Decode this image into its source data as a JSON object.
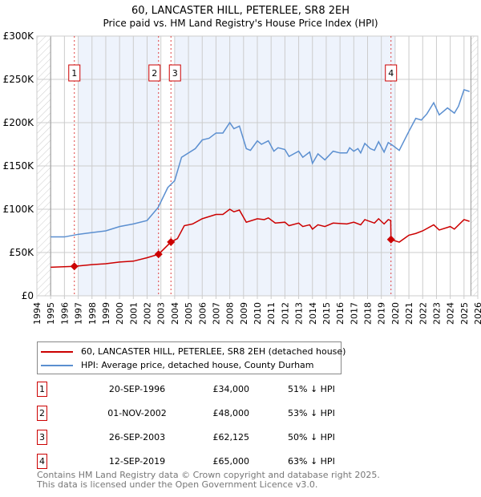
{
  "chart_data": {
    "type": "line",
    "title": "60, LANCASTER HILL, PETERLEE, SR8 2EH",
    "subtitle": "Price paid vs. HM Land Registry's House Price Index (HPI)",
    "xlim": [
      1994,
      2026
    ],
    "ylim": [
      0,
      300000
    ],
    "y_ticks": [
      {
        "v": 0,
        "label": "£0"
      },
      {
        "v": 50000,
        "label": "£50K"
      },
      {
        "v": 100000,
        "label": "£100K"
      },
      {
        "v": 150000,
        "label": "£150K"
      },
      {
        "v": 200000,
        "label": "£200K"
      },
      {
        "v": 250000,
        "label": "£250K"
      },
      {
        "v": 300000,
        "label": "£300K"
      }
    ],
    "x_ticks": [
      "1994",
      "1995",
      "1996",
      "1997",
      "1998",
      "1999",
      "2000",
      "2001",
      "2002",
      "2003",
      "2004",
      "2005",
      "2006",
      "2007",
      "2008",
      "2009",
      "2010",
      "2011",
      "2012",
      "2013",
      "2014",
      "2015",
      "2016",
      "2017",
      "2018",
      "2019",
      "2020",
      "2021",
      "2022",
      "2023",
      "2024",
      "2025",
      "2026"
    ],
    "grid": true,
    "colors": {
      "property": "#cc0000",
      "hpi": "#5b8fd0",
      "shade": "#eef3fc"
    },
    "shaded": [
      [
        1997.0,
        2002.9
      ],
      [
        2004.0,
        2020.0
      ]
    ],
    "hatched": [
      [
        1994,
        1995
      ],
      [
        2025.5,
        2026
      ]
    ],
    "series": [
      {
        "name": "60, LANCASTER HILL, PETERLEE, SR8 2EH (detached house)",
        "color": "#cc0000",
        "points": [
          [
            1995,
            33000
          ],
          [
            1996.72,
            34000
          ],
          [
            1998,
            36000
          ],
          [
            1999,
            37000
          ],
          [
            2000,
            39000
          ],
          [
            2001,
            40000
          ],
          [
            2002,
            44000
          ],
          [
            2002.83,
            48000
          ],
          [
            2003.73,
            62125
          ],
          [
            2004.2,
            66000
          ],
          [
            2004.7,
            81000
          ],
          [
            2005.3,
            83000
          ],
          [
            2006,
            89000
          ],
          [
            2007,
            94000
          ],
          [
            2007.5,
            94000
          ],
          [
            2008,
            100000
          ],
          [
            2008.3,
            97000
          ],
          [
            2008.7,
            99000
          ],
          [
            2009.2,
            85000
          ],
          [
            2010,
            89000
          ],
          [
            2010.5,
            88000
          ],
          [
            2010.8,
            90000
          ],
          [
            2011.3,
            84000
          ],
          [
            2012,
            85000
          ],
          [
            2012.3,
            81000
          ],
          [
            2013,
            84000
          ],
          [
            2013.3,
            80000
          ],
          [
            2013.8,
            82000
          ],
          [
            2014,
            77000
          ],
          [
            2014.4,
            82000
          ],
          [
            2014.9,
            80000
          ],
          [
            2015.5,
            84000
          ],
          [
            2016.5,
            83000
          ],
          [
            2017,
            85000
          ],
          [
            2017.5,
            82000
          ],
          [
            2017.8,
            88000
          ],
          [
            2018.5,
            84000
          ],
          [
            2018.8,
            89000
          ],
          [
            2019.2,
            83000
          ],
          [
            2019.5,
            88000
          ],
          [
            2019.68,
            87000
          ],
          [
            2019.7,
            65000
          ],
          [
            2020.3,
            62000
          ],
          [
            2021,
            70000
          ],
          [
            2021.5,
            72000
          ],
          [
            2022,
            75000
          ],
          [
            2022.8,
            82000
          ],
          [
            2023.2,
            76000
          ],
          [
            2024,
            80000
          ],
          [
            2024.3,
            77000
          ],
          [
            2025,
            88000
          ],
          [
            2025.4,
            86000
          ]
        ]
      },
      {
        "name": "HPI: Average price, detached house, County Durham",
        "color": "#5b8fd0",
        "points": [
          [
            1995,
            68000
          ],
          [
            1996,
            68000
          ],
          [
            1997,
            71000
          ],
          [
            1998,
            73000
          ],
          [
            1999,
            75000
          ],
          [
            2000,
            80000
          ],
          [
            2001,
            83000
          ],
          [
            2002,
            87000
          ],
          [
            2002.8,
            102000
          ],
          [
            2003.5,
            125000
          ],
          [
            2004,
            133000
          ],
          [
            2004.5,
            160000
          ],
          [
            2005.5,
            170000
          ],
          [
            2006,
            180000
          ],
          [
            2006.5,
            182000
          ],
          [
            2007,
            188000
          ],
          [
            2007.5,
            188000
          ],
          [
            2008,
            200000
          ],
          [
            2008.3,
            193000
          ],
          [
            2008.7,
            196000
          ],
          [
            2009.2,
            170000
          ],
          [
            2009.5,
            168000
          ],
          [
            2010,
            179000
          ],
          [
            2010.3,
            175000
          ],
          [
            2010.8,
            179000
          ],
          [
            2011.2,
            167000
          ],
          [
            2011.5,
            171000
          ],
          [
            2012,
            169000
          ],
          [
            2012.3,
            161000
          ],
          [
            2013,
            167000
          ],
          [
            2013.3,
            160000
          ],
          [
            2013.8,
            166000
          ],
          [
            2014,
            153000
          ],
          [
            2014.4,
            164000
          ],
          [
            2014.9,
            157000
          ],
          [
            2015.5,
            167000
          ],
          [
            2016,
            165000
          ],
          [
            2016.5,
            165000
          ],
          [
            2016.7,
            171000
          ],
          [
            2017,
            167000
          ],
          [
            2017.3,
            170000
          ],
          [
            2017.5,
            165000
          ],
          [
            2017.8,
            176000
          ],
          [
            2018.2,
            170000
          ],
          [
            2018.5,
            168000
          ],
          [
            2018.8,
            178000
          ],
          [
            2019.2,
            166000
          ],
          [
            2019.5,
            177000
          ],
          [
            2019.8,
            174000
          ],
          [
            2020.3,
            168000
          ],
          [
            2021,
            190000
          ],
          [
            2021.5,
            205000
          ],
          [
            2021.9,
            203000
          ],
          [
            2022.3,
            210000
          ],
          [
            2022.8,
            223000
          ],
          [
            2023.2,
            209000
          ],
          [
            2023.8,
            217000
          ],
          [
            2024.3,
            211000
          ],
          [
            2024.6,
            219000
          ],
          [
            2025,
            238000
          ],
          [
            2025.4,
            236000
          ]
        ]
      }
    ],
    "sales": [
      {
        "label": "1",
        "x": 1996.72,
        "date": "20-SEP-1996",
        "price": 34000,
        "price_label": "£34,000",
        "hpi": "51% ↓ HPI"
      },
      {
        "label": "2",
        "x": 2002.83,
        "date": "01-NOV-2002",
        "price": 48000,
        "price_label": "£48,000",
        "hpi": "53% ↓ HPI"
      },
      {
        "label": "3",
        "x": 2003.73,
        "date": "26-SEP-2003",
        "price": 62125,
        "price_label": "£62,125",
        "hpi": "50% ↓ HPI"
      },
      {
        "label": "4",
        "x": 2019.7,
        "date": "12-SEP-2019",
        "price": 65000,
        "price_label": "£65,000",
        "hpi": "63% ↓ HPI"
      }
    ],
    "legend": [
      "60, LANCASTER HILL, PETERLEE, SR8 2EH (detached house)",
      "HPI: Average price, detached house, County Durham"
    ]
  },
  "footer": [
    "Contains HM Land Registry data © Crown copyright and database right 2025.",
    "This data is licensed under the Open Government Licence v3.0."
  ]
}
